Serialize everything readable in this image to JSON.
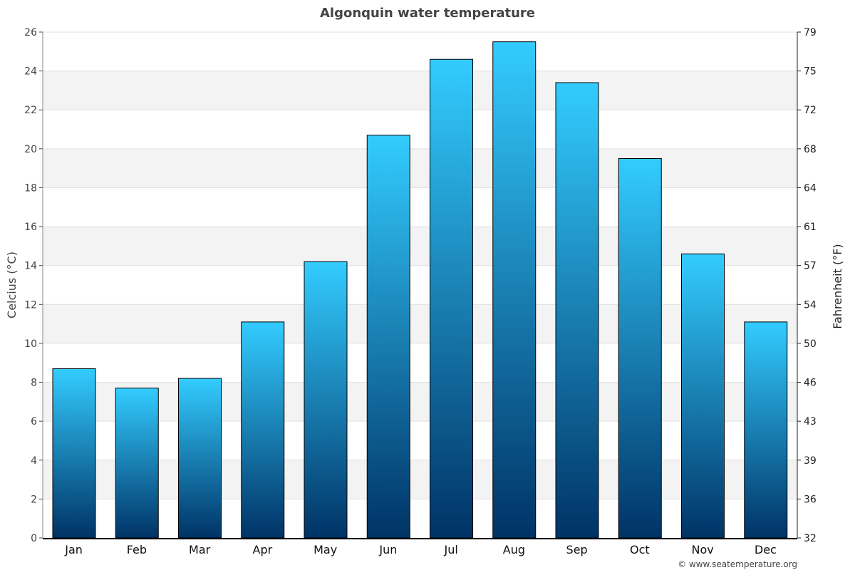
{
  "chart_data": {
    "type": "bar",
    "title": "Algonquin water temperature",
    "ylabel": "Celcius (°C)",
    "ylabel_right": "Fahrenheit (°F)",
    "categories": [
      "Jan",
      "Feb",
      "Mar",
      "Apr",
      "May",
      "Jun",
      "Jul",
      "Aug",
      "Sep",
      "Oct",
      "Nov",
      "Dec"
    ],
    "values": [
      8.7,
      7.7,
      8.2,
      11.1,
      14.2,
      20.7,
      24.6,
      25.5,
      23.4,
      19.5,
      14.6,
      11.1
    ],
    "ylim": [
      0,
      26
    ],
    "yticks": [
      0,
      2,
      4,
      6,
      8,
      10,
      12,
      14,
      16,
      18,
      20,
      22,
      24,
      26
    ],
    "yticks_right": [
      "32",
      "36",
      "39",
      "43",
      "46",
      "50",
      "54",
      "57",
      "61",
      "64",
      "68",
      "72",
      "75",
      "79"
    ],
    "grid": true,
    "colors": {
      "bar_top": "#33ccff",
      "bar_bottom": "#003366",
      "band": "#f3f3f3",
      "title": "#444444"
    }
  },
  "footer": "© www.seatemperature.org"
}
